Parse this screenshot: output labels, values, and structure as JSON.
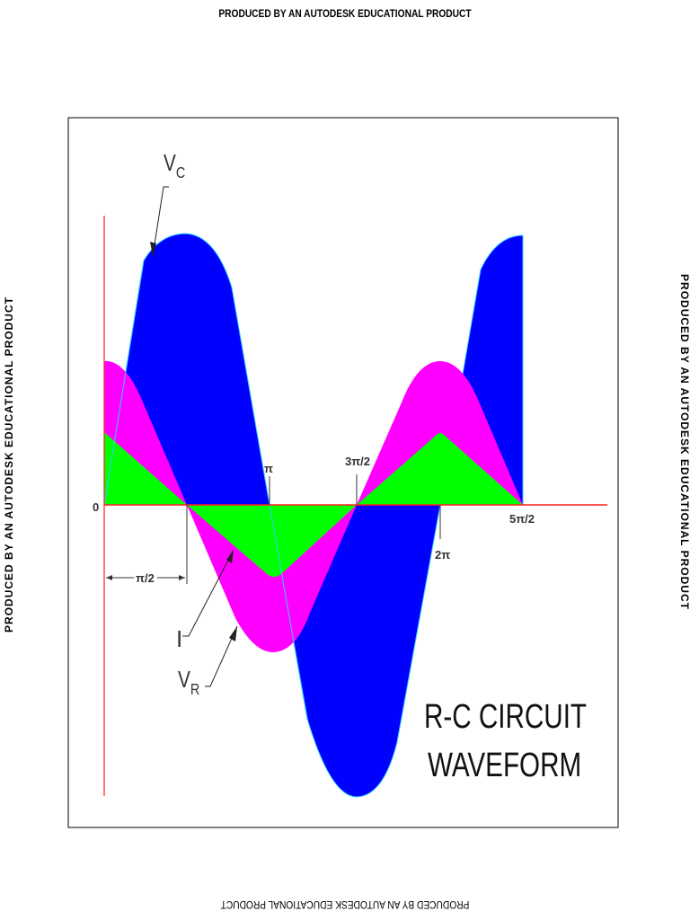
{
  "watermark": {
    "top": "PRODUCED BY AN AUTODESK EDUCATIONAL PRODUCT",
    "bottom": "PRODUCED BY AN AUTODESK EDUCATIONAL PRODUCT",
    "left": "PRODUCED BY AN AUTODESK EDUCATIONAL PRODUCT",
    "right": "PRODUCED BY AN AUTODESK EDUCATIONAL PRODUCT"
  },
  "labels": {
    "vc_main": "V",
    "vc_sub": "C",
    "vr_main": "V",
    "vr_sub": "R",
    "current": "I",
    "origin": "0",
    "half_pi": "π/2",
    "pi": "π",
    "three_half_pi": "3π/2",
    "two_pi": "2π",
    "five_half_pi": "5π/2"
  },
  "title": {
    "line1": "R-C CIRCUIT",
    "line2": "WAVEFORM"
  },
  "colors": {
    "vc": "#0000ff",
    "vr": "#ff00ff",
    "current": "#00ff00",
    "axis": "#ff2020"
  }
}
